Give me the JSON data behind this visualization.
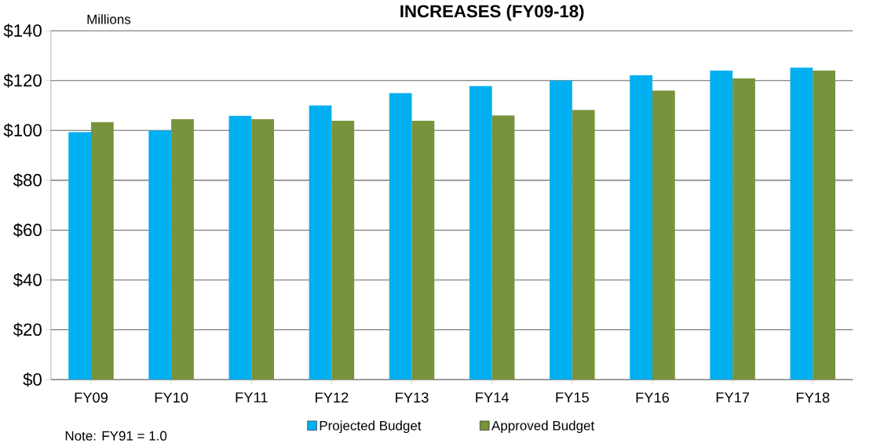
{
  "chart_data": {
    "type": "bar",
    "title": "INCREASES (FY09-18)",
    "ylabel": "Millions",
    "categories": [
      "FY09",
      "FY10",
      "FY11",
      "FY12",
      "FY13",
      "FY14",
      "FY15",
      "FY16",
      "FY17",
      "FY18"
    ],
    "series": [
      {
        "name": "Projected Budget",
        "color": "#00b0f0",
        "values": [
          99.3,
          99.9,
          105.8,
          110,
          115,
          117.8,
          120,
          122.1,
          124,
          125.2
        ]
      },
      {
        "name": "Approved Budget",
        "color": "#77933c",
        "values": [
          103.3,
          104.5,
          104.5,
          103.9,
          103.9,
          106,
          108.2,
          116,
          120.9,
          124
        ]
      }
    ],
    "ylim": [
      0,
      140
    ],
    "yticks": [
      {
        "value": 0,
        "label": "$0"
      },
      {
        "value": 20,
        "label": "$20"
      },
      {
        "value": 40,
        "label": "$40"
      },
      {
        "value": 60,
        "label": "$60"
      },
      {
        "value": 80,
        "label": "$80"
      },
      {
        "value": 100,
        "label": "$100"
      },
      {
        "value": 120,
        "label": "$120"
      },
      {
        "value": 140,
        "label": "$140"
      }
    ],
    "grid": "y",
    "legend": "bottom",
    "annotations": [
      "Note: FY91 = 1.0"
    ]
  }
}
